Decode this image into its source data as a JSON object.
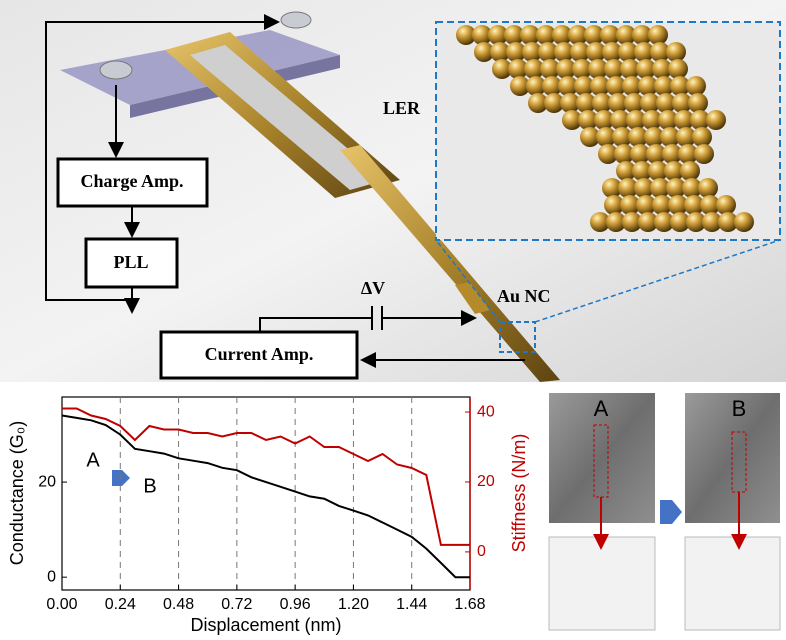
{
  "diagram": {
    "labels": {
      "ler": "LER",
      "charge_amp": "Charge Amp.",
      "pll": "PLL",
      "current_amp": "Current Amp.",
      "delta_v": "ΔV",
      "au_nc": "Au NC"
    }
  },
  "chart_data": {
    "type": "line",
    "xlabel": "Displacement (nm)",
    "ylabel": "Conductance (G₀)",
    "y2label": "Stiffness (N/m)",
    "annotations": [
      "A",
      "B"
    ],
    "x": [
      0,
      0.06,
      0.12,
      0.18,
      0.24,
      0.3,
      0.36,
      0.42,
      0.48,
      0.54,
      0.6,
      0.66,
      0.72,
      0.78,
      0.84,
      0.9,
      0.96,
      1.02,
      1.08,
      1.14,
      1.2,
      1.26,
      1.32,
      1.38,
      1.44,
      1.5,
      1.56,
      1.62,
      1.68
    ],
    "series": [
      {
        "color": "#000000",
        "values": [
          34,
          33.5,
          33,
          32,
          30,
          27,
          26.5,
          26,
          25,
          24.5,
          24,
          23,
          22.5,
          21,
          20,
          19,
          18,
          17,
          16.5,
          15,
          14,
          13,
          11.5,
          10,
          8.5,
          6,
          3,
          0,
          0
        ]
      },
      {
        "color": "#c00000",
        "axis": "y2",
        "values": [
          41,
          41,
          39,
          38,
          36,
          32,
          36,
          35,
          35,
          34,
          34,
          33,
          34,
          34,
          32,
          33,
          31,
          33,
          30,
          30,
          28,
          26,
          28,
          25,
          24,
          22,
          2,
          2,
          2
        ]
      }
    ],
    "xlim": [
      0,
      1.68
    ],
    "xticks": [
      {
        "value": 0,
        "label": "0.00"
      },
      0.24,
      0.48,
      0.72,
      0.96,
      {
        "value": 1.2,
        "label": "1.20"
      },
      1.44,
      1.68
    ],
    "ylim": [
      -2.7,
      37.9
    ],
    "yticks": [
      0,
      20
    ],
    "y2lim": [
      -10.9,
      44.3
    ],
    "y2ticks": [
      0,
      20,
      40
    ],
    "grid": true
  },
  "tem": {
    "panels": [
      {
        "label": "A"
      },
      {
        "label": "B"
      }
    ]
  }
}
